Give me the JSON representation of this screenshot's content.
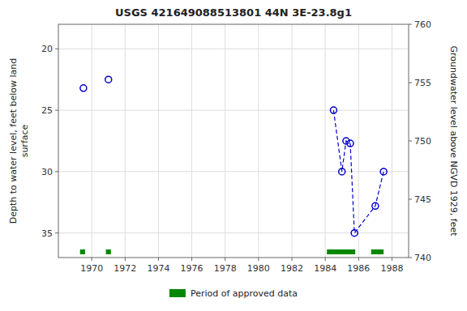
{
  "chart_data": {
    "type": "line",
    "title": "USGS 421649088513801 44N 3E-23.8g1",
    "y_label": "Depth to water level, feet below land\n surface",
    "y2_label": "Groundwater level above NGVD 1929, feet",
    "series": [
      {
        "type": "scatter",
        "color": "#0000cc",
        "marker": "circle",
        "x": [
          1969.5,
          1971.0
        ],
        "values": [
          23.2,
          22.5
        ]
      },
      {
        "type": "line",
        "color": "#0000cc",
        "marker": "circle",
        "line_style": "dashed",
        "x": [
          1984.5,
          1985.0,
          1985.25,
          1985.5,
          1985.75,
          1987.0,
          1987.5
        ],
        "values": [
          25.0,
          30.0,
          27.5,
          27.7,
          35.0,
          32.8,
          30.0
        ]
      }
    ],
    "periods": {
      "name": "Period of approved data",
      "color": "#008800",
      "start": [
        1969.3,
        1970.85,
        1984.1,
        1986.75
      ],
      "end": [
        1969.6,
        1971.15,
        1985.8,
        1987.5
      ]
    },
    "xlim": [
      1968,
      1989
    ],
    "xticks": [
      1970,
      1972,
      1974,
      1976,
      1978,
      1980,
      1982,
      1984,
      1986,
      1988
    ],
    "ylim": [
      37,
      18
    ],
    "yticks": [
      20,
      25,
      30,
      35
    ],
    "y2lim": [
      740,
      760
    ],
    "y2ticks": [
      740,
      745,
      750,
      755,
      760
    ],
    "grid": true,
    "legend": "bottom"
  }
}
